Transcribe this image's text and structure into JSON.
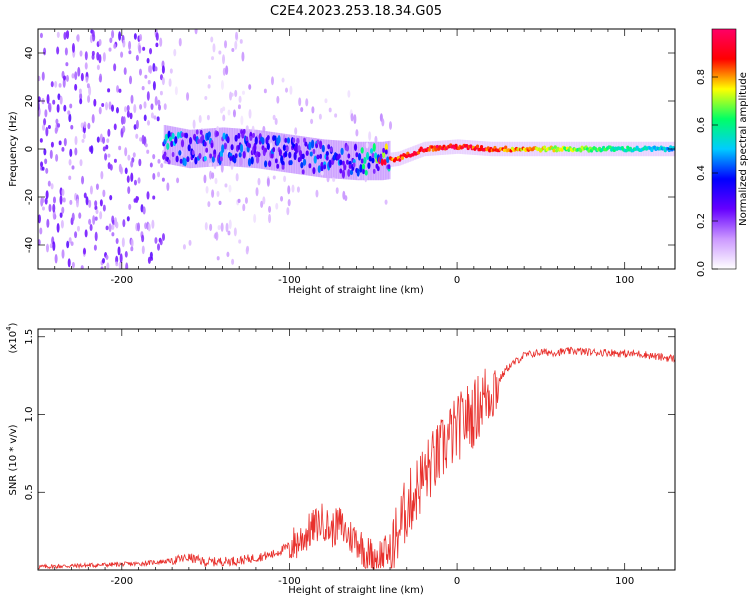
{
  "figure": {
    "title": "C2E4.2023.253.18.34.G05"
  },
  "chart_data": [
    {
      "type": "heatmap",
      "xlabel": "Height of straight line (km)",
      "ylabel": "Frequency (Hz)",
      "xlim": [
        -250,
        130
      ],
      "ylim": [
        -50,
        50
      ],
      "xticks": [
        -200,
        -100,
        0,
        100
      ],
      "yticks": [
        -40,
        -20,
        0,
        20,
        40
      ],
      "colorbar": {
        "label": "Normalized spectral amplitude",
        "range": [
          0,
          1
        ],
        "ticks": [
          "0.0",
          "0.2",
          "0.4",
          "0.6",
          "0.8"
        ],
        "colors": [
          "#ffffff",
          "#cc99ff",
          "#6600ff",
          "#0000ff",
          "#00ccff",
          "#00ff66",
          "#ffff00",
          "#ff0000",
          "#ff0066"
        ]
      },
      "ridge": {
        "x": [
          -175,
          -160,
          -140,
          -120,
          -100,
          -80,
          -60,
          -45,
          -35,
          -20,
          0,
          20,
          60,
          100,
          130
        ],
        "freq": [
          2,
          0,
          1,
          0,
          -2,
          -4,
          -5,
          -5,
          -4,
          0,
          1,
          0,
          0,
          0,
          0
        ],
        "amplitude": [
          0.45,
          0.4,
          0.38,
          0.35,
          0.35,
          0.38,
          0.4,
          0.85,
          0.9,
          0.95,
          0.95,
          0.9,
          0.75,
          0.6,
          0.5
        ]
      }
    },
    {
      "type": "line",
      "xlabel": "Height of straight line (km)",
      "ylabel": "SNR (10 * v/v)",
      "y_multiplier": "(x10",
      "y_multiplier_exp": "4",
      "y_multiplier_close": ")",
      "xlim": [
        -250,
        130
      ],
      "ylim": [
        0,
        1.55
      ],
      "xticks": [
        -200,
        -100,
        0,
        100
      ],
      "yticks": [
        "0.5",
        "1.0",
        "1.5"
      ],
      "series": [
        {
          "color": "#e8302c",
          "x": [
            -250,
            -220,
            -190,
            -170,
            -160,
            -150,
            -130,
            -110,
            -95,
            -85,
            -80,
            -75,
            -70,
            -65,
            -60,
            -55,
            -50,
            -45,
            -40,
            -35,
            -30,
            -25,
            -20,
            -15,
            -10,
            -5,
            0,
            5,
            10,
            15,
            20,
            25,
            30,
            40,
            50,
            60,
            70,
            80,
            90,
            100,
            110,
            120,
            130
          ],
          "y": [
            0.02,
            0.03,
            0.04,
            0.06,
            0.08,
            0.05,
            0.06,
            0.1,
            0.18,
            0.28,
            0.32,
            0.25,
            0.3,
            0.22,
            0.2,
            0.12,
            0.08,
            0.1,
            0.12,
            0.25,
            0.4,
            0.5,
            0.6,
            0.68,
            0.75,
            0.85,
            0.9,
            0.98,
            1.0,
            1.1,
            1.15,
            1.22,
            1.3,
            1.38,
            1.4,
            1.4,
            1.41,
            1.4,
            1.4,
            1.39,
            1.39,
            1.37,
            1.36
          ]
        }
      ]
    }
  ]
}
